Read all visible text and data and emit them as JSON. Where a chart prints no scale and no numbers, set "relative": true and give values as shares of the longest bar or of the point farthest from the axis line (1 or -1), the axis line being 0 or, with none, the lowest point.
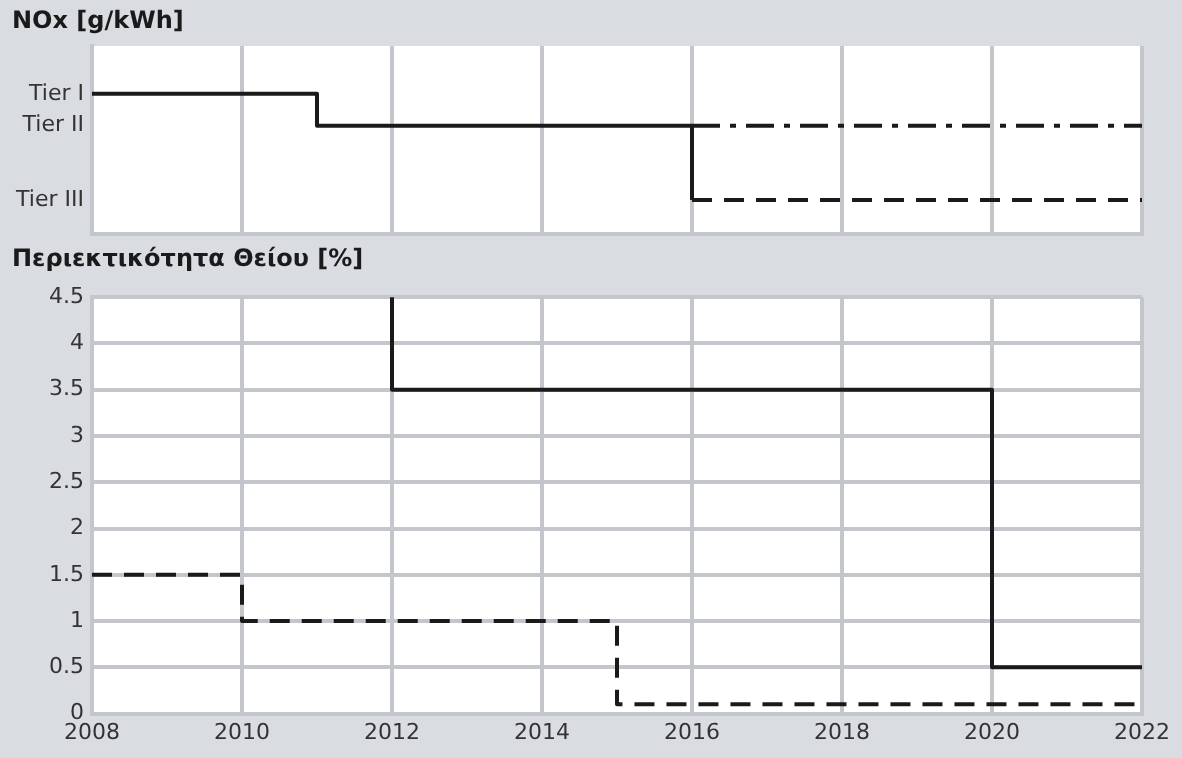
{
  "chart_data": [
    {
      "type": "step",
      "title": "NOx [g/kWh]",
      "xlim": [
        2008,
        2022
      ],
      "xticks": [
        2008,
        2010,
        2012,
        2014,
        2016,
        2018,
        2020,
        2022
      ],
      "relative": true,
      "tick_labels": "y",
      "grid": "x",
      "legend": false,
      "annotations": [
        "Tier I",
        "Tier II",
        "Tier III"
      ],
      "series": [
        {
          "color": "#1a1a1a",
          "line_style": "solid",
          "x": [
            2008,
            2011,
            2016
          ],
          "values": [
            1,
            0.7,
            0
          ]
        },
        {
          "color": "#1a1a1a",
          "line_style": "dashdot",
          "x": [
            2016,
            2022
          ],
          "values": [
            0.7,
            0.7
          ]
        },
        {
          "color": "#1a1a1a",
          "line_style": "dashed",
          "x": [
            2016,
            2022
          ],
          "values": [
            0,
            0
          ]
        }
      ]
    },
    {
      "type": "step",
      "title": "Περιεκτικότητα Θείου [%]",
      "xlim": [
        2008,
        2022
      ],
      "xticks": [
        2008,
        2010,
        2012,
        2014,
        2016,
        2018,
        2020,
        2022
      ],
      "ylim": [
        0,
        4.5
      ],
      "yticks": [
        0,
        0.5,
        1,
        1.5,
        2,
        2.5,
        3,
        3.5,
        4,
        4.5
      ],
      "grid": true,
      "legend": false,
      "series": [
        {
          "color": "#1a1a1a",
          "line_style": "solid",
          "x": [
            2012,
            2012,
            2020,
            2022
          ],
          "values": [
            4.5,
            3.5,
            0.5,
            0.5
          ]
        },
        {
          "color": "#1a1a1a",
          "line_style": "dashed",
          "x": [
            2008,
            2010,
            2015,
            2022
          ],
          "values": [
            1.5,
            1,
            0.1,
            0.1
          ]
        }
      ]
    }
  ]
}
